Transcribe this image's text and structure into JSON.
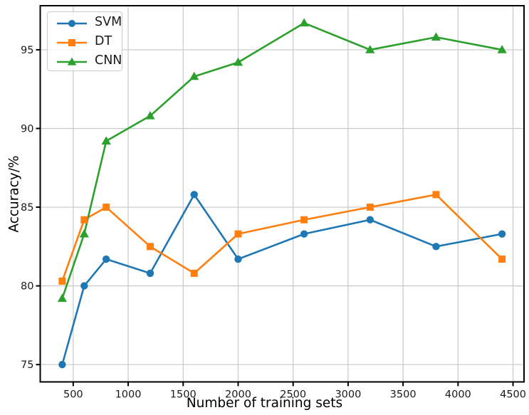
{
  "chart_data": {
    "type": "line",
    "title": "",
    "xlabel": "Number of training sets",
    "ylabel": "Accuracy/%",
    "x": [
      400,
      600,
      800,
      1200,
      1600,
      2000,
      2600,
      3200,
      3800,
      4400
    ],
    "series": [
      {
        "name": "SVM",
        "color": "#1f77b4",
        "marker": "circle",
        "values": [
          75.0,
          80.0,
          81.7,
          80.8,
          85.8,
          81.7,
          83.3,
          84.2,
          82.5,
          83.3
        ]
      },
      {
        "name": "DT",
        "color": "#ff7f0e",
        "marker": "square",
        "values": [
          80.3,
          84.2,
          85.0,
          82.5,
          80.8,
          83.3,
          84.2,
          85.0,
          85.8,
          81.7
        ]
      },
      {
        "name": "CNN",
        "color": "#2ca02c",
        "marker": "triangle",
        "values": [
          79.2,
          83.3,
          89.2,
          90.8,
          93.3,
          94.2,
          96.7,
          95.0,
          95.8,
          95.0
        ]
      }
    ],
    "xlim": [
      200,
      4600
    ],
    "ylim": [
      73.9,
      97.8
    ],
    "xticks": [
      500,
      1000,
      1500,
      2000,
      2500,
      3000,
      3500,
      4000,
      4500
    ],
    "yticks": [
      75,
      80,
      85,
      90,
      95
    ],
    "grid": true,
    "grid_color": "#c8c8c8",
    "axis_color": "#000000",
    "tick_label_color": "#1a1a1a",
    "legend": {
      "position": "upper-left",
      "entries": [
        "SVM",
        "DT",
        "CNN"
      ]
    }
  }
}
